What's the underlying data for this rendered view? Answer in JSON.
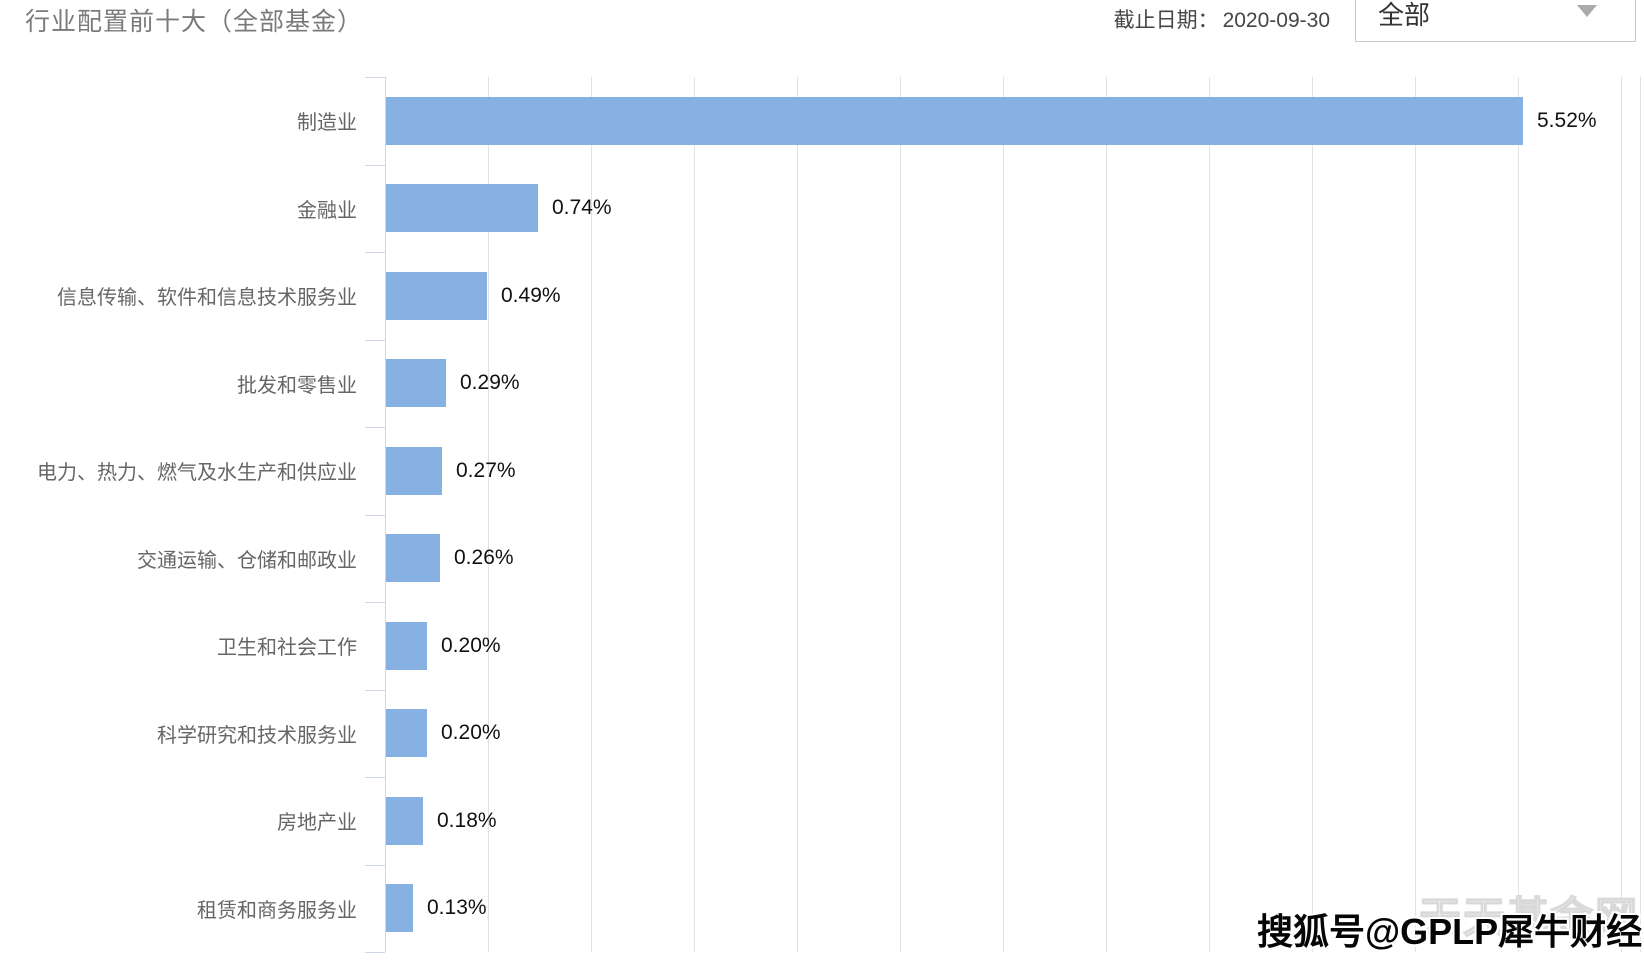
{
  "header": {
    "title": "行业配置前十大（全部基金）",
    "date_label": "截止日期：",
    "date_value": "2020-09-30",
    "filter_dropdown": {
      "selected": "全部",
      "caret_icon": "caret-down-icon"
    }
  },
  "chart_data": {
    "type": "bar",
    "orientation": "horizontal",
    "title": "行业配置前十大（全部基金）",
    "categories": [
      "制造业",
      "金融业",
      "信息传输、软件和信息技术服务业",
      "批发和零售业",
      "电力、热力、燃气及水生产和供应业",
      "交通运输、仓储和邮政业",
      "卫生和社会工作",
      "科学研究和技术服务业",
      "房地产业",
      "租赁和商务服务业"
    ],
    "values": [
      5.52,
      0.74,
      0.49,
      0.29,
      0.27,
      0.26,
      0.2,
      0.2,
      0.18,
      0.13
    ],
    "value_labels": [
      "5.52%",
      "0.74%",
      "0.49%",
      "0.29%",
      "0.27%",
      "0.26%",
      "0.20%",
      "0.20%",
      "0.18%",
      "0.13%"
    ],
    "xlabel": "",
    "ylabel": "",
    "xlim": [
      0,
      6.11
    ],
    "gridline_step": 0.5,
    "grid": "vertical",
    "legend": "none",
    "bar_color": "#87b1e2",
    "axis_color": "#ccd6e8",
    "gridline_color": "#e2e2e2",
    "label_color": "#666666",
    "value_color": "#111111"
  },
  "watermarks": {
    "site": "天天基金网",
    "byline": "搜狐号@GPLP犀牛财经"
  }
}
